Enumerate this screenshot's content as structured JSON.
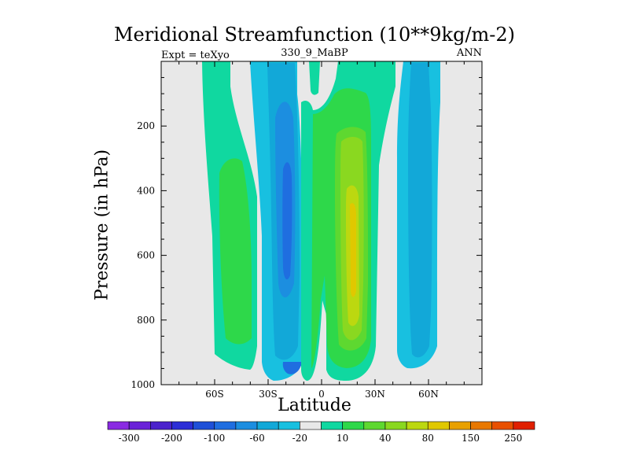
{
  "chart_data": {
    "type": "heatmap",
    "title": "Meridional Streamfunction (10**9kg/m-2)",
    "subtitle_left": "Expt = teXyo",
    "subtitle_center": "330_9_MaBP",
    "subtitle_right": "ANN",
    "xlabel": "Latitude",
    "ylabel": "Pressure (in hPa)",
    "xlim": [
      -90,
      90
    ],
    "ylim": [
      1000,
      0
    ],
    "x_ticks": [
      {
        "value": -60,
        "label": "60S"
      },
      {
        "value": -30,
        "label": "30S"
      },
      {
        "value": 0,
        "label": "0"
      },
      {
        "value": 30,
        "label": "30N"
      },
      {
        "value": 60,
        "label": "60N"
      }
    ],
    "y_ticks": [
      {
        "value": 200,
        "label": "200"
      },
      {
        "value": 400,
        "label": "400"
      },
      {
        "value": 600,
        "label": "600"
      },
      {
        "value": 800,
        "label": "800"
      },
      {
        "value": 1000,
        "label": "1000"
      }
    ],
    "colorbar": {
      "colors": [
        "#8a2be2",
        "#6a22d8",
        "#4b22cc",
        "#2c2ed6",
        "#1e50d8",
        "#1f6ee0",
        "#1c8ee0",
        "#12a8d8",
        "#18c0e0",
        "#e8e8e8",
        "#10d8a0",
        "#2ed84a",
        "#5ed830",
        "#8ad820",
        "#bcd810",
        "#e0c800",
        "#e8a000",
        "#e87800",
        "#e85000",
        "#e02000"
      ],
      "labels": [
        {
          "after_index": 0,
          "text": "-300"
        },
        {
          "after_index": 2,
          "text": "-200"
        },
        {
          "after_index": 4,
          "text": "-100"
        },
        {
          "after_index": 6,
          "text": "-60"
        },
        {
          "after_index": 8,
          "text": "-20"
        },
        {
          "after_index": 10,
          "text": "10"
        },
        {
          "after_index": 12,
          "text": "40"
        },
        {
          "after_index": 14,
          "text": "80"
        },
        {
          "after_index": 16,
          "text": "150"
        },
        {
          "after_index": 18,
          "text": "250"
        }
      ]
    },
    "features": [
      {
        "name": "SH polar cell",
        "sign": "positive",
        "lat": [
          -71,
          -49
        ],
        "p": [
          20,
          950
        ],
        "max_level": "10 to 20",
        "core_lat": [
          -67,
          -55
        ],
        "core_p": [
          300,
          850
        ]
      },
      {
        "name": "SH Ferrel cell",
        "sign": "negative",
        "lat": [
          -43,
          -17
        ],
        "p": [
          20,
          985
        ],
        "min_level": "-40 to -60",
        "core_lat": [
          -33,
          -22
        ],
        "core_p": [
          230,
          700
        ]
      },
      {
        "name": "Hadley cell (upper branch)",
        "sign": "positive",
        "lat": [
          -4,
          2
        ],
        "p": [
          20,
          120
        ],
        "max_level": "0 to 10"
      },
      {
        "name": "Hadley cell (main)",
        "sign": "positive",
        "lat": [
          -5,
          30
        ],
        "p": [
          60,
          985
        ],
        "max_level": "80 to 100",
        "core_lat": [
          13,
          24
        ],
        "core_p": [
          380,
          850
        ]
      },
      {
        "name": "NH Ferrel cell",
        "sign": "negative",
        "lat": [
          42,
          65
        ],
        "p": [
          20,
          960
        ],
        "min_level": "-20 to -40"
      }
    ]
  }
}
